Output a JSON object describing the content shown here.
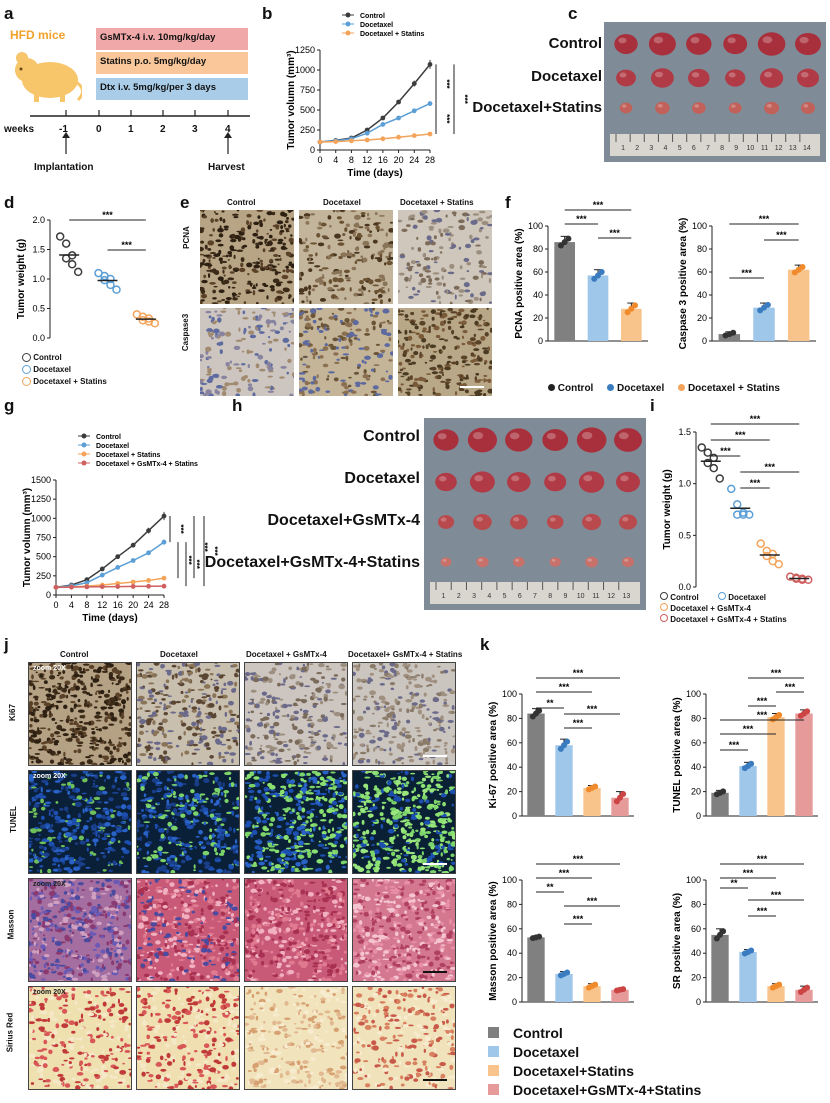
{
  "colors": {
    "control": "#3c3c3c",
    "docetaxel": "#5b9fd6",
    "statins": "#f4a35a",
    "gsmtx": "#d06060",
    "bar_control": "#808080",
    "bar_doc": "#9ec7ea",
    "bar_stat": "#f8c48c",
    "bar_gsm": "#e69a9a"
  },
  "panel_letters": {
    "a": "a",
    "b": "b",
    "c": "c",
    "d": "d",
    "e": "e",
    "f": "f",
    "g": "g",
    "h": "h",
    "i": "i",
    "j": "j",
    "k": "k"
  },
  "panel_a": {
    "mouse_label": "HFD mice",
    "treatments": [
      "GsMTx-4 i.v. 10mg/kg/day",
      "Statins p.o. 5mg/kg/day",
      "Dtx i.v. 5mg/kg/per 3 days"
    ],
    "timeline_label": "weeks",
    "ticks": [
      "-1",
      "0",
      "1",
      "2",
      "3",
      "4"
    ],
    "implantation": "Implantation",
    "harvest": "Harvest"
  },
  "panel_c": {
    "rows": [
      "Control",
      "Docetaxel",
      "Docetaxel+Statins"
    ]
  },
  "panel_e": {
    "cols": [
      "Control",
      "Docetaxel",
      "Docetaxel + Statins"
    ],
    "rows": [
      "PCNA",
      "Caspase3"
    ]
  },
  "panel_h": {
    "rows": [
      "Control",
      "Docetaxel",
      "Docetaxel+GsMTx-4",
      "Docetaxel+GsMTx-4+Statins"
    ]
  },
  "panel_j": {
    "cols": [
      "Control",
      "Docetaxel",
      "Docetaxel + GsMTx-4",
      "Docetaxel+ GsMTx-4 + Statins"
    ],
    "rows": [
      "Ki67",
      "TUNEL",
      "Masson",
      "Sirius Red"
    ],
    "zoom": "zoom 20X"
  },
  "ruler_numbers_c": [
    "1",
    "2",
    "3",
    "4",
    "5",
    "6",
    "7",
    "8",
    "9",
    "10",
    "11",
    "12",
    "13",
    "14"
  ],
  "ruler_numbers_h": [
    "1",
    "2",
    "3",
    "4",
    "5",
    "6",
    "7",
    "8",
    "9",
    "10",
    "11",
    "12",
    "13"
  ],
  "legend_f": [
    "Control",
    "Docetaxel",
    "Docetaxel + Statins"
  ],
  "legend_d": [
    "Control",
    "Docetaxel",
    "Docetaxel + Statins"
  ],
  "legend_i": [
    "Control",
    "Docetaxel",
    "Docetaxel + GsMTx-4",
    "Docetaxel + GsMTx-4 + Statins"
  ],
  "legend_k": [
    "Control",
    "Docetaxel",
    "Docetaxel+Statins",
    "Docetaxel+GsMTx-4+Statins"
  ],
  "chart_data": [
    {
      "id": "b",
      "type": "line",
      "xlabel": "Time (days)",
      "ylabel": "Tumor volumn (mm³)",
      "x": [
        0,
        4,
        8,
        12,
        16,
        20,
        24,
        28
      ],
      "ylim": [
        0,
        1250
      ],
      "yticks": [
        0,
        250,
        500,
        750,
        1000,
        1250
      ],
      "series": [
        {
          "name": "Control",
          "values": [
            100,
            120,
            150,
            250,
            400,
            600,
            830,
            1070
          ]
        },
        {
          "name": "Docetaxel",
          "values": [
            100,
            115,
            140,
            210,
            320,
            400,
            490,
            580
          ]
        },
        {
          "name": "Docetaxel + Statins",
          "values": [
            100,
            105,
            115,
            125,
            140,
            160,
            180,
            200
          ]
        }
      ],
      "annotations": [
        "***",
        "***",
        "***"
      ]
    },
    {
      "id": "d",
      "type": "scatter",
      "ylabel": "Tumor weight (g)",
      "ylim": [
        0,
        2.0
      ],
      "yticks": [
        0,
        0.5,
        1.0,
        1.5,
        2.0
      ],
      "series": [
        {
          "name": "Control",
          "values": [
            1.72,
            1.6,
            1.4,
            1.35,
            1.25,
            1.12
          ]
        },
        {
          "name": "Docetaxel",
          "values": [
            1.1,
            1.05,
            1.0,
            0.98,
            0.9,
            0.82
          ]
        },
        {
          "name": "Docetaxel + Statins",
          "values": [
            0.4,
            0.36,
            0.33,
            0.3,
            0.28,
            0.25
          ]
        }
      ],
      "annotations": [
        "***",
        "***"
      ]
    },
    {
      "id": "f1",
      "type": "bar",
      "ylabel": "PCNA positive area (%)",
      "categories": [
        "Control",
        "Docetaxel",
        "Docetaxel + Statins"
      ],
      "values": [
        86,
        57,
        28
      ],
      "errors": [
        5,
        5,
        5
      ],
      "ylim": [
        0,
        100
      ],
      "yticks": [
        0,
        20,
        40,
        60,
        80,
        100
      ],
      "annotations": [
        "***",
        "***",
        "***"
      ]
    },
    {
      "id": "f2",
      "type": "bar",
      "ylabel": "Caspase 3 positive area (%)",
      "categories": [
        "Control",
        "Docetaxel",
        "Docetaxel + Statins"
      ],
      "values": [
        6,
        29,
        62
      ],
      "errors": [
        2,
        4,
        4
      ],
      "ylim": [
        0,
        100
      ],
      "yticks": [
        0,
        20,
        40,
        60,
        80,
        100
      ],
      "annotations": [
        "***",
        "***",
        "***"
      ]
    },
    {
      "id": "g",
      "type": "line",
      "xlabel": "Time (days)",
      "ylabel": "Tumor volumn (mm³)",
      "x": [
        0,
        4,
        8,
        12,
        16,
        20,
        24,
        28
      ],
      "ylim": [
        0,
        1500
      ],
      "yticks": [
        0,
        250,
        500,
        750,
        1000,
        1250,
        1500
      ],
      "series": [
        {
          "name": "Control",
          "values": [
            100,
            130,
            200,
            340,
            500,
            650,
            840,
            1030
          ]
        },
        {
          "name": "Docetaxel",
          "values": [
            100,
            120,
            160,
            260,
            360,
            450,
            550,
            690
          ]
        },
        {
          "name": "Docetaxel + Statins",
          "values": [
            100,
            105,
            115,
            130,
            150,
            170,
            190,
            220
          ]
        },
        {
          "name": "Docetaxel + GsMTx-4 + Statins",
          "values": [
            100,
            102,
            106,
            108,
            110,
            112,
            114,
            115
          ]
        }
      ],
      "annotations": [
        "***",
        "***",
        "***",
        "***",
        "***"
      ]
    },
    {
      "id": "i",
      "type": "scatter",
      "ylabel": "Tumor weight (g)",
      "ylim": [
        0,
        1.5
      ],
      "yticks": [
        0,
        0.5,
        1.0,
        1.5
      ],
      "series": [
        {
          "name": "Control",
          "values": [
            1.35,
            1.3,
            1.25,
            1.2,
            1.15,
            1.05
          ]
        },
        {
          "name": "Docetaxel",
          "values": [
            0.95,
            0.8,
            0.72,
            0.7,
            0.7,
            0.7
          ]
        },
        {
          "name": "Docetaxel + GsMTx-4",
          "values": [
            0.42,
            0.35,
            0.32,
            0.3,
            0.25,
            0.22
          ]
        },
        {
          "name": "Docetaxel + GsMTx-4 + Statins",
          "values": [
            0.1,
            0.09,
            0.08,
            0.08,
            0.07,
            0.07
          ]
        }
      ],
      "annotations": [
        "***",
        "***",
        "***",
        "***",
        "***"
      ]
    },
    {
      "id": "k1",
      "type": "bar",
      "ylabel": "Ki-67 positive area (%)",
      "categories": [
        "Control",
        "Docetaxel",
        "Docetaxel+Statins",
        "Docetaxel+GsMTx-4+Statins"
      ],
      "values": [
        84,
        58,
        23,
        15
      ],
      "errors": [
        4,
        5,
        2,
        5
      ],
      "ylim": [
        0,
        100
      ],
      "yticks": [
        0,
        20,
        40,
        60,
        80,
        100
      ],
      "annotations": [
        "***",
        "***",
        "***",
        "**",
        "***"
      ]
    },
    {
      "id": "k2",
      "type": "bar",
      "ylabel": "TUNEL positive area (%)",
      "categories": [
        "Control",
        "Docetaxel",
        "Docetaxel+Statins",
        "Docetaxel+GsMTx-4+Statins"
      ],
      "values": [
        19,
        41,
        81,
        84
      ],
      "errors": [
        2,
        3,
        3,
        3
      ],
      "ylim": [
        0,
        100
      ],
      "yticks": [
        0,
        20,
        40,
        60,
        80,
        100
      ],
      "annotations": [
        "***",
        "***",
        "***",
        "***",
        "***",
        "***"
      ]
    },
    {
      "id": "k3",
      "type": "bar",
      "ylabel": "Masson positive area (%)",
      "categories": [
        "Control",
        "Docetaxel",
        "Docetaxel+Statins",
        "Docetaxel+GsMTx-4+Statins"
      ],
      "values": [
        53,
        23,
        13,
        10
      ],
      "errors": [
        1,
        2,
        2,
        1
      ],
      "ylim": [
        0,
        100
      ],
      "yticks": [
        0,
        20,
        40,
        60,
        80,
        100
      ],
      "annotations": [
        "***",
        "***",
        "***",
        "***",
        "**"
      ]
    },
    {
      "id": "k4",
      "type": "bar",
      "ylabel": "SR positive area (%)",
      "categories": [
        "Control",
        "Docetaxel",
        "Docetaxel+Statins",
        "Docetaxel+GsMTx-4+Statins"
      ],
      "values": [
        55,
        41,
        13,
        10
      ],
      "errors": [
        5,
        2,
        2,
        3
      ],
      "ylim": [
        0,
        100
      ],
      "yticks": [
        0,
        20,
        40,
        60,
        80,
        100
      ],
      "annotations": [
        "***",
        "***",
        "***",
        "***",
        "**"
      ]
    }
  ]
}
